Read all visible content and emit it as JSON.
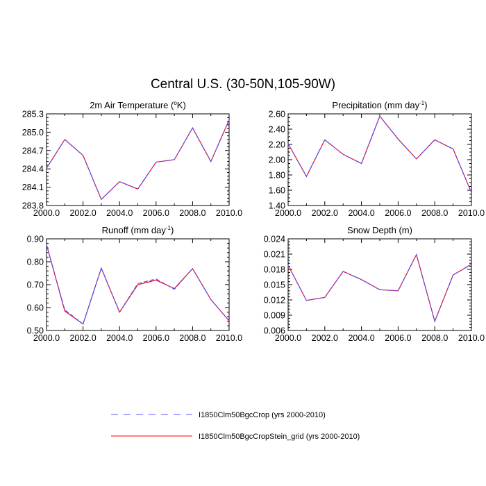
{
  "title": "Central U.S. (30-50N,105-90W)",
  "colors": {
    "series_dashed": "#5555ff",
    "series_solid": "#ff0000",
    "axis": "#000000"
  },
  "legend": {
    "placement": "bottom",
    "entries": [
      {
        "label": "I1850Clm50BgcCrop (yrs 2000-2010)",
        "style": "dashed",
        "color": "#5555ff"
      },
      {
        "label": "I1850Clm50BgcCropStein_grid (yrs 2000-2010)",
        "style": "solid",
        "color": "#ff0000"
      }
    ]
  },
  "chart_data": [
    {
      "type": "line",
      "title": "2m Air Temperature (°K)",
      "title_parts": [
        "2m Air Temperature (",
        "o",
        "K)"
      ],
      "x": [
        2000,
        2001,
        2002,
        2003,
        2004,
        2005,
        2006,
        2007,
        2008,
        2009,
        2010
      ],
      "xlim": [
        2000,
        2010
      ],
      "xticks": [
        "2000.0",
        "2002.0",
        "2004.0",
        "2006.0",
        "2008.0",
        "2010.0"
      ],
      "ylim": [
        283.8,
        285.3
      ],
      "yticks": [
        "285.3",
        "285.0",
        "284.7",
        "284.4",
        "284.1",
        "283.8"
      ],
      "series": [
        {
          "name": "I1850Clm50BgcCrop (yrs 2000-2010)",
          "values": [
            284.41,
            284.88,
            284.62,
            283.9,
            284.19,
            284.07,
            284.51,
            284.55,
            285.07,
            284.52,
            285.2
          ]
        },
        {
          "name": "I1850Clm50BgcCropStein_grid (yrs 2000-2010)",
          "values": [
            284.41,
            284.88,
            284.62,
            283.9,
            284.19,
            284.07,
            284.51,
            284.55,
            285.07,
            284.52,
            285.2
          ]
        }
      ]
    },
    {
      "type": "line",
      "title": "Precipitation (mm day-1)",
      "title_parts": [
        "Precipitation (mm day",
        "-1",
        ")"
      ],
      "x": [
        2000,
        2001,
        2002,
        2003,
        2004,
        2005,
        2006,
        2007,
        2008,
        2009,
        2010
      ],
      "xlim": [
        2000,
        2010
      ],
      "xticks": [
        "2000.0",
        "2002.0",
        "2004.0",
        "2006.0",
        "2008.0",
        "2010.0"
      ],
      "ylim": [
        1.4,
        2.6
      ],
      "yticks": [
        "2.60",
        "2.40",
        "2.20",
        "2.00",
        "1.80",
        "1.60",
        "1.40"
      ],
      "series": [
        {
          "name": "I1850Clm50BgcCrop (yrs 2000-2010)",
          "values": [
            2.21,
            1.78,
            2.26,
            2.07,
            1.95,
            2.57,
            2.27,
            2.01,
            2.26,
            2.14,
            1.57
          ]
        },
        {
          "name": "I1850Clm50BgcCropStein_grid (yrs 2000-2010)",
          "values": [
            2.21,
            1.78,
            2.26,
            2.07,
            1.95,
            2.57,
            2.27,
            2.01,
            2.26,
            2.14,
            1.57
          ]
        }
      ]
    },
    {
      "type": "line",
      "title": "Runoff (mm day-1)",
      "title_parts": [
        "Runoff (mm day",
        "-1",
        ")"
      ],
      "x": [
        2000,
        2001,
        2002,
        2003,
        2004,
        2005,
        2006,
        2007,
        2008,
        2009,
        2010
      ],
      "xlim": [
        2000,
        2010
      ],
      "xticks": [
        "2000.0",
        "2002.0",
        "2004.0",
        "2006.0",
        "2008.0",
        "2010.0"
      ],
      "ylim": [
        0.5,
        0.9
      ],
      "yticks": [
        "0.90",
        "0.80",
        "0.70",
        "0.60",
        "0.50"
      ],
      "series": [
        {
          "name": "I1850Clm50BgcCrop (yrs 2000-2010)",
          "values": [
            0.875,
            0.59,
            0.528,
            0.772,
            0.58,
            0.705,
            0.725,
            0.68,
            0.77,
            0.635,
            0.542
          ]
        },
        {
          "name": "I1850Clm50BgcCropStein_grid (yrs 2000-2010)",
          "values": [
            0.875,
            0.585,
            0.528,
            0.772,
            0.58,
            0.7,
            0.72,
            0.683,
            0.77,
            0.635,
            0.542
          ]
        }
      ]
    },
    {
      "type": "line",
      "title": "Snow Depth (m)",
      "title_parts": [
        "Snow Depth (m)",
        "",
        ""
      ],
      "x": [
        2000,
        2001,
        2002,
        2003,
        2004,
        2005,
        2006,
        2007,
        2008,
        2009,
        2010
      ],
      "xlim": [
        2000,
        2010
      ],
      "xticks": [
        "2000.0",
        "2002.0",
        "2004.0",
        "2006.0",
        "2008.0",
        "2010.0"
      ],
      "ylim": [
        0.006,
        0.024
      ],
      "yticks": [
        "0.024",
        "0.021",
        "0.018",
        "0.015",
        "0.012",
        "0.009",
        "0.006"
      ],
      "series": [
        {
          "name": "I1850Clm50BgcCrop (yrs 2000-2010)",
          "values": [
            0.0188,
            0.0119,
            0.0125,
            0.0176,
            0.016,
            0.014,
            0.0138,
            0.0209,
            0.0078,
            0.0169,
            0.019
          ]
        },
        {
          "name": "I1850Clm50BgcCropStein_grid (yrs 2000-2010)",
          "values": [
            0.0188,
            0.0119,
            0.0125,
            0.0176,
            0.016,
            0.014,
            0.0138,
            0.0209,
            0.0078,
            0.0169,
            0.019
          ]
        }
      ]
    }
  ]
}
